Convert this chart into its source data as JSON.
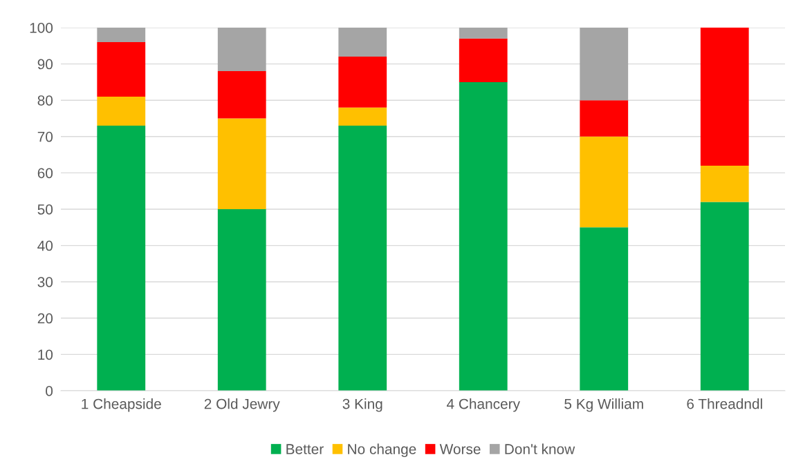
{
  "chart_data": {
    "type": "bar",
    "stacked": true,
    "categories": [
      "1 Cheapside",
      "2 Old Jewry",
      "3 King",
      "4 Chancery",
      "5 Kg William",
      "6 Threadndl"
    ],
    "series": [
      {
        "name": "Better",
        "color": "#00b050",
        "values": [
          73,
          50,
          73,
          85,
          45,
          52
        ]
      },
      {
        "name": "No change",
        "color": "#ffc000",
        "values": [
          8,
          25,
          5,
          0,
          25,
          10
        ]
      },
      {
        "name": "Worse",
        "color": "#ff0000",
        "values": [
          15,
          13,
          14,
          12,
          10,
          38
        ]
      },
      {
        "name": "Don't know",
        "color": "#a5a5a5",
        "values": [
          4,
          12,
          8,
          3,
          20,
          0
        ]
      }
    ],
    "ylim": [
      0,
      100
    ],
    "yticks": [
      0,
      10,
      20,
      30,
      40,
      50,
      60,
      70,
      80,
      90,
      100
    ],
    "grid": "y",
    "legend": "bottom"
  }
}
